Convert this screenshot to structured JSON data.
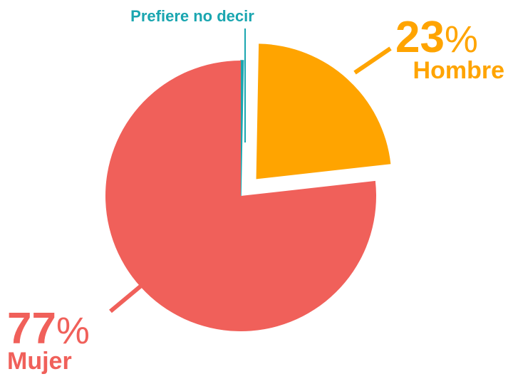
{
  "chart_data": {
    "type": "pie",
    "categories": [
      "Prefiere no decir",
      "Hombre",
      "Mujer"
    ],
    "values": [
      0.3,
      23,
      77
    ],
    "value_labels": [
      null,
      "23%",
      "77%"
    ],
    "colors": [
      "#1aa6b0",
      "#ffa400",
      "#f0605a"
    ]
  }
}
